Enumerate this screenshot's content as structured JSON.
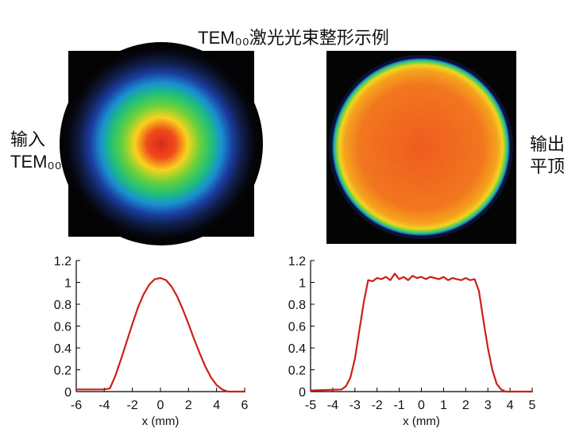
{
  "title": "TEM₀₀激光光束整形示例",
  "labels": {
    "input_line1": "输入",
    "input_line2": "TEM₀₀",
    "output_line1": "输出",
    "output_line2": "平顶"
  },
  "chart_data": [
    {
      "type": "line",
      "xlabel": "x (mm)",
      "ylabel": "",
      "xlim": [
        -6,
        6
      ],
      "ylim": [
        0,
        1.2
      ],
      "x_ticks": [
        "-6",
        "-4",
        "-2",
        "0",
        "2",
        "4",
        "6"
      ],
      "y_ticks": [
        "0",
        "0.2",
        "0.4",
        "0.6",
        "0.8",
        "1",
        "1.2"
      ],
      "series": [
        {
          "color": "#cc1f1a",
          "x": [
            -6,
            -4,
            -3.6,
            -3.2,
            -2.8,
            -2.4,
            -2,
            -1.6,
            -1.2,
            -0.8,
            -0.4,
            0,
            0.4,
            0.8,
            1.2,
            1.6,
            2,
            2.4,
            2.8,
            3.2,
            3.6,
            4,
            4.4,
            4.8,
            6
          ],
          "y": [
            0.02,
            0.02,
            0.03,
            0.15,
            0.3,
            0.46,
            0.62,
            0.77,
            0.89,
            0.98,
            1.03,
            1.04,
            1.02,
            0.96,
            0.87,
            0.75,
            0.62,
            0.48,
            0.35,
            0.23,
            0.13,
            0.06,
            0.02,
            0.0,
            0.0
          ]
        }
      ]
    },
    {
      "type": "line",
      "xlabel": "x (mm)",
      "ylabel": "",
      "xlim": [
        -5,
        5
      ],
      "ylim": [
        0,
        1.2
      ],
      "x_ticks": [
        "-5",
        "-4",
        "-3",
        "-2",
        "-1",
        "0",
        "1",
        "2",
        "3",
        "4",
        "5"
      ],
      "y_ticks": [
        "0",
        "0.2",
        "0.4",
        "0.6",
        "0.8",
        "1",
        "1.2"
      ],
      "series": [
        {
          "color": "#cc1f1a",
          "x": [
            -5,
            -3.6,
            -3.4,
            -3.2,
            -3.0,
            -2.8,
            -2.6,
            -2.4,
            -2.2,
            -2.0,
            -1.8,
            -1.6,
            -1.4,
            -1.2,
            -1.0,
            -0.8,
            -0.6,
            -0.4,
            -0.2,
            0,
            0.2,
            0.4,
            0.6,
            0.8,
            1.0,
            1.2,
            1.4,
            1.6,
            1.8,
            2.0,
            2.2,
            2.4,
            2.6,
            2.8,
            3.0,
            3.2,
            3.4,
            3.6,
            3.8,
            5
          ],
          "y": [
            0.01,
            0.02,
            0.05,
            0.13,
            0.3,
            0.56,
            0.82,
            1.02,
            1.01,
            1.04,
            1.03,
            1.05,
            1.02,
            1.08,
            1.03,
            1.05,
            1.02,
            1.06,
            1.04,
            1.05,
            1.03,
            1.05,
            1.04,
            1.03,
            1.05,
            1.02,
            1.04,
            1.03,
            1.02,
            1.04,
            1.02,
            1.03,
            0.92,
            0.65,
            0.4,
            0.2,
            0.07,
            0.02,
            0.0,
            0.0
          ]
        }
      ]
    }
  ]
}
